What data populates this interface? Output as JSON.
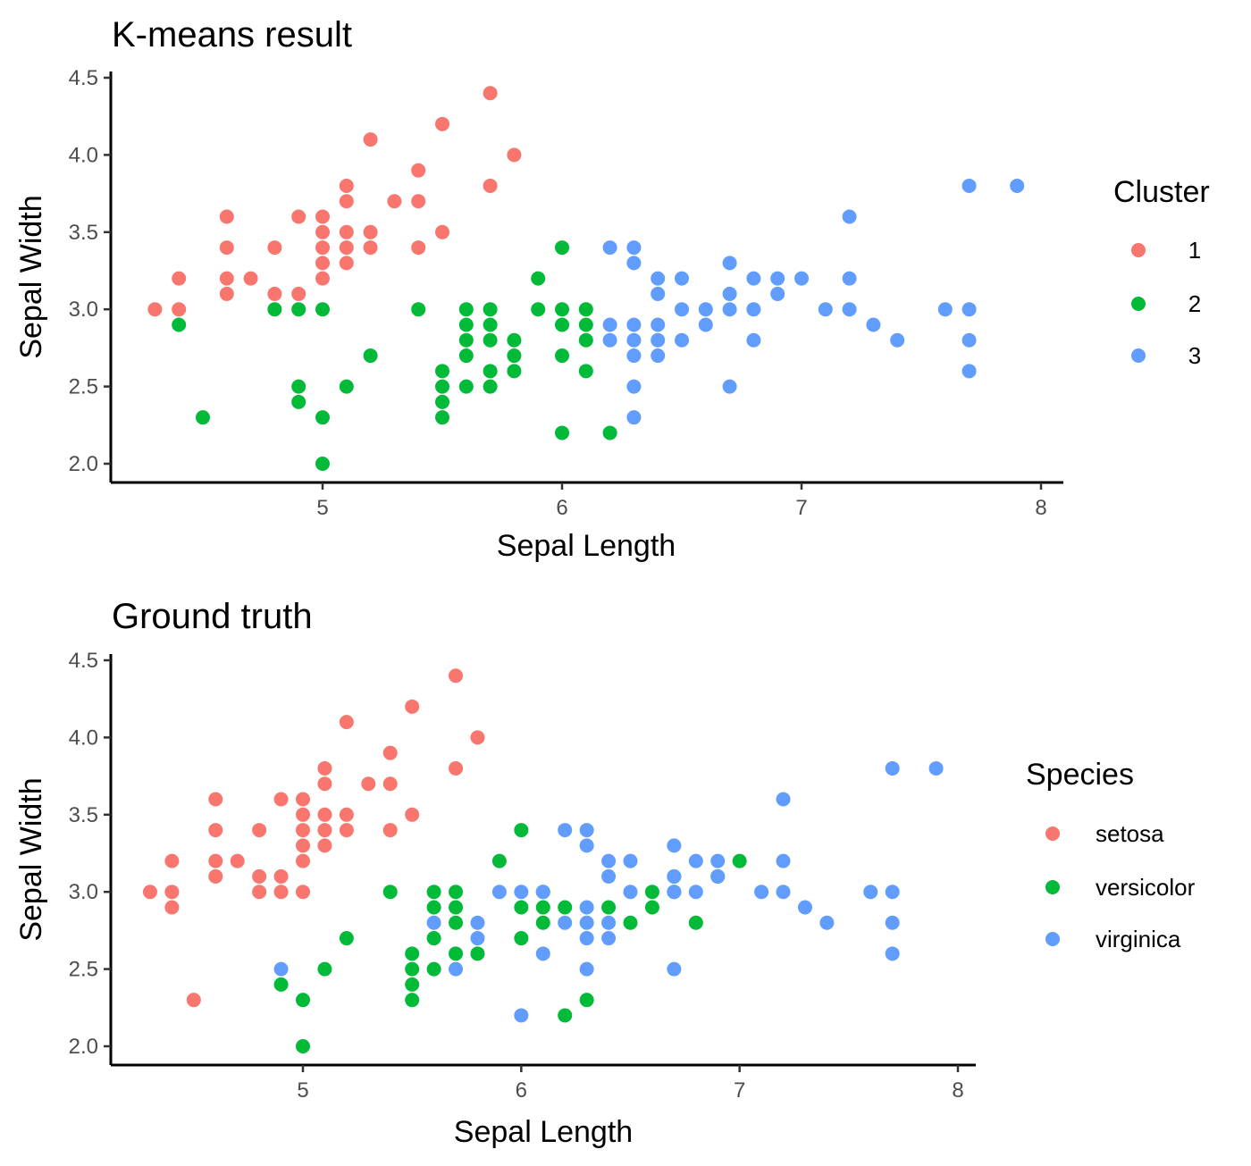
{
  "chart_data": [
    {
      "type": "scatter",
      "title": "K-means result",
      "xlabel": "Sepal Length",
      "ylabel": "Sepal Width",
      "xlim": [
        4.2,
        8.08
      ],
      "ylim": [
        1.95,
        4.52
      ],
      "xticks": [
        5,
        6,
        7,
        8
      ],
      "yticks": [
        2.0,
        2.5,
        3.0,
        3.5,
        4.0,
        4.5
      ],
      "xtick_labels": [
        "5",
        "6",
        "7",
        "8"
      ],
      "ytick_labels": [
        "2.0",
        "2.5",
        "3.0",
        "3.5",
        "4.0",
        "4.5"
      ],
      "grid": false,
      "legend": {
        "title": "Cluster",
        "position": "right"
      },
      "series": [
        {
          "name": "1",
          "color": "#F8766D",
          "points": [
            [
              4.3,
              3.0
            ],
            [
              4.4,
              3.2
            ],
            [
              4.4,
              3.0
            ],
            [
              4.6,
              3.6
            ],
            [
              4.6,
              3.4
            ],
            [
              4.6,
              3.2
            ],
            [
              4.6,
              3.1
            ],
            [
              4.7,
              3.2
            ],
            [
              4.8,
              3.4
            ],
            [
              4.8,
              3.1
            ],
            [
              4.9,
              3.6
            ],
            [
              4.9,
              3.1
            ],
            [
              5.0,
              3.6
            ],
            [
              5.0,
              3.5
            ],
            [
              5.0,
              3.4
            ],
            [
              5.0,
              3.3
            ],
            [
              5.0,
              3.2
            ],
            [
              5.1,
              3.8
            ],
            [
              5.1,
              3.7
            ],
            [
              5.1,
              3.5
            ],
            [
              5.1,
              3.4
            ],
            [
              5.1,
              3.3
            ],
            [
              5.2,
              4.1
            ],
            [
              5.2,
              3.5
            ],
            [
              5.2,
              3.4
            ],
            [
              5.3,
              3.7
            ],
            [
              5.4,
              3.9
            ],
            [
              5.4,
              3.7
            ],
            [
              5.4,
              3.4
            ],
            [
              5.5,
              4.2
            ],
            [
              5.5,
              3.5
            ],
            [
              5.7,
              4.4
            ],
            [
              5.7,
              3.8
            ],
            [
              5.8,
              4.0
            ]
          ]
        },
        {
          "name": "2",
          "color": "#00BA38",
          "points": [
            [
              4.4,
              2.9
            ],
            [
              4.5,
              2.3
            ],
            [
              4.8,
              3.0
            ],
            [
              4.9,
              3.0
            ],
            [
              4.9,
              2.5
            ],
            [
              4.9,
              2.4
            ],
            [
              5.0,
              3.0
            ],
            [
              5.0,
              2.3
            ],
            [
              5.0,
              2.0
            ],
            [
              5.1,
              2.5
            ],
            [
              5.2,
              2.7
            ],
            [
              5.4,
              3.0
            ],
            [
              5.5,
              2.6
            ],
            [
              5.5,
              2.5
            ],
            [
              5.5,
              2.4
            ],
            [
              5.5,
              2.3
            ],
            [
              5.6,
              3.0
            ],
            [
              5.6,
              2.9
            ],
            [
              5.6,
              2.8
            ],
            [
              5.6,
              2.7
            ],
            [
              5.6,
              2.5
            ],
            [
              5.7,
              3.0
            ],
            [
              5.7,
              2.9
            ],
            [
              5.7,
              2.8
            ],
            [
              5.7,
              2.6
            ],
            [
              5.7,
              2.5
            ],
            [
              5.8,
              2.8
            ],
            [
              5.8,
              2.7
            ],
            [
              5.8,
              2.6
            ],
            [
              5.9,
              3.2
            ],
            [
              5.9,
              3.0
            ],
            [
              6.0,
              3.4
            ],
            [
              6.0,
              3.0
            ],
            [
              6.0,
              2.9
            ],
            [
              6.0,
              2.7
            ],
            [
              6.0,
              2.2
            ],
            [
              6.1,
              3.0
            ],
            [
              6.1,
              2.9
            ],
            [
              6.1,
              2.8
            ],
            [
              6.1,
              2.6
            ],
            [
              6.2,
              2.2
            ]
          ]
        },
        {
          "name": "3",
          "color": "#619CFF",
          "points": [
            [
              6.2,
              3.4
            ],
            [
              6.2,
              2.9
            ],
            [
              6.2,
              2.8
            ],
            [
              6.3,
              3.4
            ],
            [
              6.3,
              3.3
            ],
            [
              6.3,
              2.9
            ],
            [
              6.3,
              2.8
            ],
            [
              6.3,
              2.7
            ],
            [
              6.3,
              2.5
            ],
            [
              6.3,
              2.3
            ],
            [
              6.4,
              3.2
            ],
            [
              6.4,
              3.1
            ],
            [
              6.4,
              2.9
            ],
            [
              6.4,
              2.8
            ],
            [
              6.4,
              2.7
            ],
            [
              6.5,
              3.2
            ],
            [
              6.5,
              3.0
            ],
            [
              6.5,
              2.8
            ],
            [
              6.6,
              3.0
            ],
            [
              6.6,
              2.9
            ],
            [
              6.7,
              3.3
            ],
            [
              6.7,
              3.1
            ],
            [
              6.7,
              3.0
            ],
            [
              6.7,
              2.5
            ],
            [
              6.8,
              3.2
            ],
            [
              6.8,
              3.0
            ],
            [
              6.8,
              2.8
            ],
            [
              6.9,
              3.2
            ],
            [
              6.9,
              3.1
            ],
            [
              7.0,
              3.2
            ],
            [
              7.1,
              3.0
            ],
            [
              7.2,
              3.6
            ],
            [
              7.2,
              3.2
            ],
            [
              7.2,
              3.0
            ],
            [
              7.3,
              2.9
            ],
            [
              7.4,
              2.8
            ],
            [
              7.6,
              3.0
            ],
            [
              7.7,
              3.8
            ],
            [
              7.7,
              3.0
            ],
            [
              7.7,
              2.8
            ],
            [
              7.7,
              2.6
            ],
            [
              7.9,
              3.8
            ]
          ]
        }
      ]
    },
    {
      "type": "scatter",
      "title": "Ground truth",
      "xlabel": "Sepal Length",
      "ylabel": "Sepal Width",
      "xlim": [
        4.2,
        8.08
      ],
      "ylim": [
        1.95,
        4.52
      ],
      "xticks": [
        5,
        6,
        7,
        8
      ],
      "yticks": [
        2.0,
        2.5,
        3.0,
        3.5,
        4.0,
        4.5
      ],
      "xtick_labels": [
        "5",
        "6",
        "7",
        "8"
      ],
      "ytick_labels": [
        "2.0",
        "2.5",
        "3.0",
        "3.5",
        "4.0",
        "4.5"
      ],
      "grid": false,
      "legend": {
        "title": "Species",
        "position": "right"
      },
      "series": [
        {
          "name": "setosa",
          "color": "#F8766D",
          "points": [
            [
              4.3,
              3.0
            ],
            [
              4.4,
              3.2
            ],
            [
              4.4,
              3.0
            ],
            [
              4.4,
              2.9
            ],
            [
              4.5,
              2.3
            ],
            [
              4.6,
              3.6
            ],
            [
              4.6,
              3.4
            ],
            [
              4.6,
              3.2
            ],
            [
              4.6,
              3.1
            ],
            [
              4.7,
              3.2
            ],
            [
              4.8,
              3.4
            ],
            [
              4.8,
              3.1
            ],
            [
              4.8,
              3.0
            ],
            [
              4.9,
              3.6
            ],
            [
              4.9,
              3.1
            ],
            [
              4.9,
              3.0
            ],
            [
              5.0,
              3.6
            ],
            [
              5.0,
              3.5
            ],
            [
              5.0,
              3.4
            ],
            [
              5.0,
              3.3
            ],
            [
              5.0,
              3.2
            ],
            [
              5.0,
              3.0
            ],
            [
              5.1,
              3.8
            ],
            [
              5.1,
              3.7
            ],
            [
              5.1,
              3.5
            ],
            [
              5.1,
              3.4
            ],
            [
              5.1,
              3.3
            ],
            [
              5.2,
              4.1
            ],
            [
              5.2,
              3.5
            ],
            [
              5.2,
              3.4
            ],
            [
              5.3,
              3.7
            ],
            [
              5.4,
              3.9
            ],
            [
              5.4,
              3.7
            ],
            [
              5.4,
              3.4
            ],
            [
              5.5,
              4.2
            ],
            [
              5.5,
              3.5
            ],
            [
              5.7,
              4.4
            ],
            [
              5.7,
              3.8
            ],
            [
              5.8,
              4.0
            ]
          ]
        },
        {
          "name": "versicolor",
          "color": "#00BA38",
          "points": [
            [
              4.9,
              2.4
            ],
            [
              5.0,
              2.3
            ],
            [
              5.0,
              2.0
            ],
            [
              5.1,
              2.5
            ],
            [
              5.2,
              2.7
            ],
            [
              5.4,
              3.0
            ],
            [
              5.5,
              2.6
            ],
            [
              5.5,
              2.5
            ],
            [
              5.5,
              2.4
            ],
            [
              5.5,
              2.3
            ],
            [
              5.6,
              3.0
            ],
            [
              5.6,
              2.9
            ],
            [
              5.6,
              2.7
            ],
            [
              5.6,
              2.5
            ],
            [
              5.7,
              3.0
            ],
            [
              5.7,
              2.9
            ],
            [
              5.7,
              2.8
            ],
            [
              5.7,
              2.6
            ],
            [
              5.8,
              2.6
            ],
            [
              5.9,
              3.2
            ],
            [
              6.0,
              3.4
            ],
            [
              6.0,
              2.9
            ],
            [
              6.0,
              2.7
            ],
            [
              6.1,
              3.0
            ],
            [
              6.1,
              2.9
            ],
            [
              6.1,
              2.8
            ],
            [
              6.2,
              2.9
            ],
            [
              6.2,
              2.2
            ],
            [
              6.3,
              2.3
            ],
            [
              6.4,
              2.9
            ],
            [
              6.5,
              2.8
            ],
            [
              6.6,
              3.0
            ],
            [
              6.6,
              2.9
            ],
            [
              6.7,
              3.1
            ],
            [
              6.7,
              3.0
            ],
            [
              6.8,
              2.8
            ],
            [
              6.9,
              3.1
            ],
            [
              7.0,
              3.2
            ]
          ]
        },
        {
          "name": "virginica",
          "color": "#619CFF",
          "points": [
            [
              4.9,
              2.5
            ],
            [
              5.6,
              2.8
            ],
            [
              5.7,
              2.5
            ],
            [
              5.8,
              2.8
            ],
            [
              5.8,
              2.7
            ],
            [
              5.9,
              3.0
            ],
            [
              6.0,
              3.0
            ],
            [
              6.0,
              2.2
            ],
            [
              6.1,
              3.0
            ],
            [
              6.1,
              2.6
            ],
            [
              6.2,
              3.4
            ],
            [
              6.2,
              2.8
            ],
            [
              6.3,
              3.4
            ],
            [
              6.3,
              3.3
            ],
            [
              6.3,
              2.9
            ],
            [
              6.3,
              2.8
            ],
            [
              6.3,
              2.7
            ],
            [
              6.3,
              2.5
            ],
            [
              6.4,
              3.2
            ],
            [
              6.4,
              3.1
            ],
            [
              6.4,
              2.8
            ],
            [
              6.4,
              2.7
            ],
            [
              6.5,
              3.2
            ],
            [
              6.5,
              3.0
            ],
            [
              6.7,
              3.3
            ],
            [
              6.7,
              3.1
            ],
            [
              6.7,
              3.0
            ],
            [
              6.7,
              2.5
            ],
            [
              6.8,
              3.2
            ],
            [
              6.8,
              3.0
            ],
            [
              6.9,
              3.2
            ],
            [
              6.9,
              3.1
            ],
            [
              7.1,
              3.0
            ],
            [
              7.2,
              3.6
            ],
            [
              7.2,
              3.2
            ],
            [
              7.2,
              3.0
            ],
            [
              7.3,
              2.9
            ],
            [
              7.4,
              2.8
            ],
            [
              7.6,
              3.0
            ],
            [
              7.7,
              3.8
            ],
            [
              7.7,
              3.0
            ],
            [
              7.7,
              2.8
            ],
            [
              7.7,
              2.6
            ],
            [
              7.9,
              3.8
            ]
          ]
        }
      ]
    }
  ]
}
